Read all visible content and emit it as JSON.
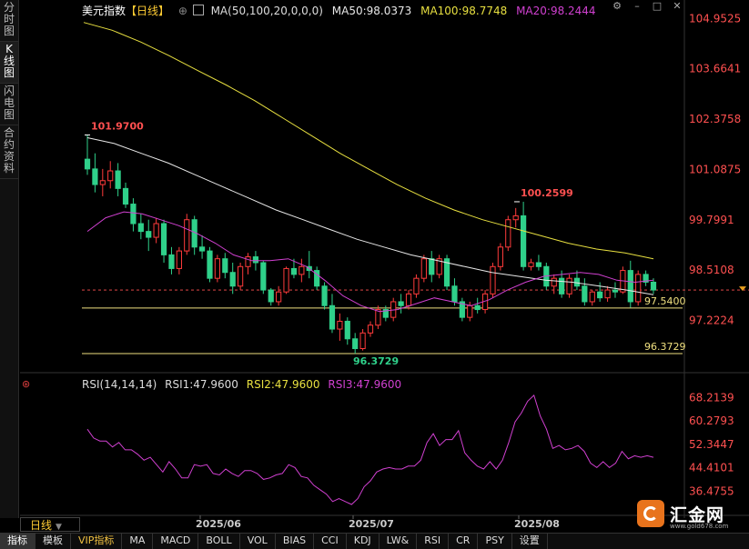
{
  "left_tabs": [
    {
      "label": "分时图",
      "chars": [
        "分",
        "时",
        "图"
      ]
    },
    {
      "label": "K线图",
      "chars": [
        "K",
        "线",
        "图"
      ]
    },
    {
      "label": "闪电图",
      "chars": [
        "闪",
        "电",
        "图"
      ]
    },
    {
      "label": "合约资料",
      "chars": [
        "合",
        "约",
        "资",
        "料"
      ]
    }
  ],
  "header": {
    "name": "美元指数",
    "period": "【日线】",
    "ma_params": "MA(50,100,20,0,0,0)",
    "ma50": "MA50:98.0373",
    "ma100": "MA100:98.7748",
    "ma20": "MA20:98.2444"
  },
  "colors": {
    "up": "#ff3b3b",
    "down": "#2fd08a",
    "ma50": "#e8e8e8",
    "ma100": "#e8e040",
    "ma20": "#d040d0",
    "axis_label": "#ff5050",
    "rsi": "#d040d0"
  },
  "price_axis": {
    "labels": [
      "104.9525",
      "103.6641",
      "102.3758",
      "101.0875",
      "99.7991",
      "98.5108",
      "97.2224"
    ],
    "min": 96.0,
    "max": 105.1
  },
  "annotations": {
    "high1": "101.9700",
    "high2": "100.2599",
    "low": "96.3729",
    "hline1_label": "97.5400",
    "hline2_label": "96.3729"
  },
  "hlines": {
    "level1": 97.54,
    "level2": 96.3729,
    "dashed": 98.0
  },
  "rsi": {
    "header_name": "RSI(14,14,14)",
    "rsi1": "RSI1:47.9600",
    "rsi2": "RSI2:47.9600",
    "rsi3": "RSI3:47.9600",
    "axis_labels": [
      "68.2139",
      "60.2793",
      "52.3447",
      "44.4101",
      "36.4755"
    ],
    "min": 32.0,
    "max": 70.5,
    "values": [
      57.5,
      54.5,
      53.5,
      53.5,
      51.5,
      53,
      50.5,
      50.5,
      49,
      47,
      48,
      45.5,
      43,
      46.5,
      44,
      41,
      41,
      45.5,
      45,
      45.5,
      42.5,
      42,
      44,
      42.5,
      41.5,
      43.5,
      43.5,
      42.5,
      40.5,
      41,
      42,
      42.5,
      45.5,
      44.5,
      41.5,
      41,
      38.5,
      37,
      35.5,
      33,
      34,
      33,
      32,
      34,
      38,
      40,
      43,
      44,
      44.5,
      44,
      44,
      45,
      45,
      47,
      53,
      56,
      52,
      54,
      54,
      57,
      49.5,
      47,
      45,
      44,
      46.5,
      44,
      47,
      53,
      60,
      63,
      67,
      69,
      62,
      57.5,
      51,
      52,
      50.5,
      51,
      52,
      50,
      46,
      44.5,
      46.5,
      44.5,
      46,
      50,
      47.5,
      48.5,
      48,
      48.5,
      48
    ]
  },
  "candles": [
    [
      101.35,
      101.97,
      100.95,
      101.1
    ],
    [
      101.1,
      101.5,
      100.5,
      100.7
    ],
    [
      100.7,
      101.1,
      100.4,
      100.8
    ],
    [
      100.8,
      101.3,
      100.6,
      101.05
    ],
    [
      101.05,
      101.25,
      100.4,
      100.6
    ],
    [
      100.6,
      100.75,
      100.1,
      100.2
    ],
    [
      100.2,
      100.35,
      99.5,
      99.7
    ],
    [
      99.7,
      99.95,
      99.3,
      99.5
    ],
    [
      99.5,
      99.8,
      99.0,
      99.35
    ],
    [
      99.35,
      99.85,
      99.2,
      99.7
    ],
    [
      99.7,
      99.8,
      98.7,
      98.9
    ],
    [
      98.9,
      99.1,
      98.4,
      98.55
    ],
    [
      98.55,
      99.1,
      98.4,
      99.0
    ],
    [
      99.0,
      99.95,
      98.9,
      99.8
    ],
    [
      99.8,
      99.9,
      98.9,
      99.1
    ],
    [
      99.1,
      99.4,
      98.8,
      99.0
    ],
    [
      99.0,
      99.1,
      98.2,
      98.3
    ],
    [
      98.3,
      98.9,
      98.2,
      98.8
    ],
    [
      98.8,
      98.95,
      98.3,
      98.45
    ],
    [
      98.45,
      98.7,
      97.9,
      98.1
    ],
    [
      98.1,
      98.7,
      98.0,
      98.6
    ],
    [
      98.6,
      98.95,
      98.4,
      98.85
    ],
    [
      98.85,
      99.0,
      98.5,
      98.7
    ],
    [
      98.7,
      98.75,
      97.9,
      98.0
    ],
    [
      98.0,
      98.05,
      97.6,
      97.7
    ],
    [
      97.7,
      98.1,
      97.6,
      97.95
    ],
    [
      97.95,
      98.6,
      97.9,
      98.55
    ],
    [
      98.55,
      98.8,
      98.3,
      98.4
    ],
    [
      98.4,
      98.8,
      98.2,
      98.6
    ],
    [
      98.6,
      99.0,
      98.3,
      98.5
    ],
    [
      98.5,
      98.6,
      98.0,
      98.1
    ],
    [
      98.1,
      98.2,
      97.5,
      97.6
    ],
    [
      97.6,
      97.9,
      96.9,
      97.0
    ],
    [
      97.0,
      97.4,
      96.7,
      97.2
    ],
    [
      97.2,
      97.3,
      96.6,
      96.75
    ],
    [
      96.75,
      96.9,
      96.37,
      96.5
    ],
    [
      96.5,
      97.0,
      96.45,
      96.9
    ],
    [
      96.9,
      97.2,
      96.8,
      97.1
    ],
    [
      97.1,
      97.6,
      97.0,
      97.5
    ],
    [
      97.5,
      97.6,
      97.2,
      97.3
    ],
    [
      97.3,
      97.8,
      97.2,
      97.7
    ],
    [
      97.7,
      97.9,
      97.4,
      97.6
    ],
    [
      97.6,
      98.0,
      97.5,
      97.9
    ],
    [
      97.9,
      98.4,
      97.8,
      98.3
    ],
    [
      98.3,
      98.9,
      98.2,
      98.8
    ],
    [
      98.8,
      99.0,
      98.2,
      98.4
    ],
    [
      98.4,
      98.9,
      98.3,
      98.8
    ],
    [
      98.8,
      98.9,
      98.0,
      98.1
    ],
    [
      98.1,
      98.3,
      97.6,
      97.7
    ],
    [
      97.7,
      97.8,
      97.2,
      97.3
    ],
    [
      97.3,
      97.7,
      97.2,
      97.6
    ],
    [
      97.6,
      97.8,
      97.4,
      97.5
    ],
    [
      97.5,
      98.0,
      97.4,
      97.9
    ],
    [
      97.9,
      98.7,
      97.8,
      98.6
    ],
    [
      98.6,
      99.2,
      98.5,
      99.1
    ],
    [
      99.1,
      99.9,
      99.0,
      99.8
    ],
    [
      99.8,
      100.1,
      99.6,
      99.9
    ],
    [
      99.9,
      100.26,
      98.5,
      98.6
    ],
    [
      98.6,
      98.8,
      98.5,
      98.7
    ],
    [
      98.7,
      98.9,
      98.5,
      98.6
    ],
    [
      98.6,
      98.7,
      98.0,
      98.1
    ],
    [
      98.1,
      98.4,
      97.9,
      98.3
    ],
    [
      98.3,
      98.5,
      97.8,
      97.9
    ],
    [
      97.9,
      98.4,
      97.8,
      98.3
    ],
    [
      98.3,
      98.5,
      98.0,
      98.1
    ],
    [
      98.1,
      98.3,
      97.6,
      97.7
    ],
    [
      97.7,
      98.0,
      97.6,
      97.95
    ],
    [
      97.95,
      98.2,
      97.7,
      97.8
    ],
    [
      97.8,
      98.1,
      97.7,
      98.0
    ],
    [
      98.0,
      98.2,
      97.8,
      97.95
    ],
    [
      97.95,
      98.6,
      97.9,
      98.5
    ],
    [
      98.5,
      98.75,
      97.55,
      97.7
    ],
    [
      97.7,
      98.5,
      97.6,
      98.4
    ],
    [
      98.4,
      98.5,
      98.1,
      98.2
    ],
    [
      98.2,
      98.3,
      97.9,
      98.0
    ]
  ],
  "ma50_pts": [
    101.9,
    101.75,
    101.5,
    101.25,
    100.95,
    100.65,
    100.35,
    100.05,
    99.8,
    99.55,
    99.3,
    99.1,
    98.9,
    98.75,
    98.6,
    98.45,
    98.35,
    98.25,
    98.2,
    98.1,
    98.0,
    97.88
  ],
  "ma100_pts": [
    104.85,
    104.65,
    104.35,
    104.0,
    103.62,
    103.25,
    102.85,
    102.4,
    101.95,
    101.5,
    101.1,
    100.7,
    100.35,
    100.05,
    99.8,
    99.6,
    99.4,
    99.2,
    99.05,
    98.95,
    98.8
  ],
  "ma20_pts": [
    99.5,
    99.85,
    100.0,
    99.95,
    99.8,
    99.65,
    99.45,
    99.2,
    98.9,
    98.75,
    98.75,
    98.8,
    98.6,
    98.25,
    97.85,
    97.6,
    97.45,
    97.5,
    97.65,
    97.8,
    97.7,
    97.6,
    97.75,
    98.0,
    98.2,
    98.35,
    98.4,
    98.45,
    98.4,
    98.25,
    98.2,
    98.25
  ],
  "x_labels": [
    "2025/06",
    "2025/07",
    "2025/08"
  ],
  "period_label": "日线",
  "toolbar": [
    "指标",
    "模板",
    "VIP指标",
    "MA",
    "MACD",
    "BOLL",
    "VOL",
    "BIAS",
    "CCI",
    "KDJ",
    "LW&",
    "RSI",
    "CR",
    "PSY",
    "设置"
  ],
  "logo": {
    "text": "汇金网",
    "url": "www.gold678.com"
  }
}
